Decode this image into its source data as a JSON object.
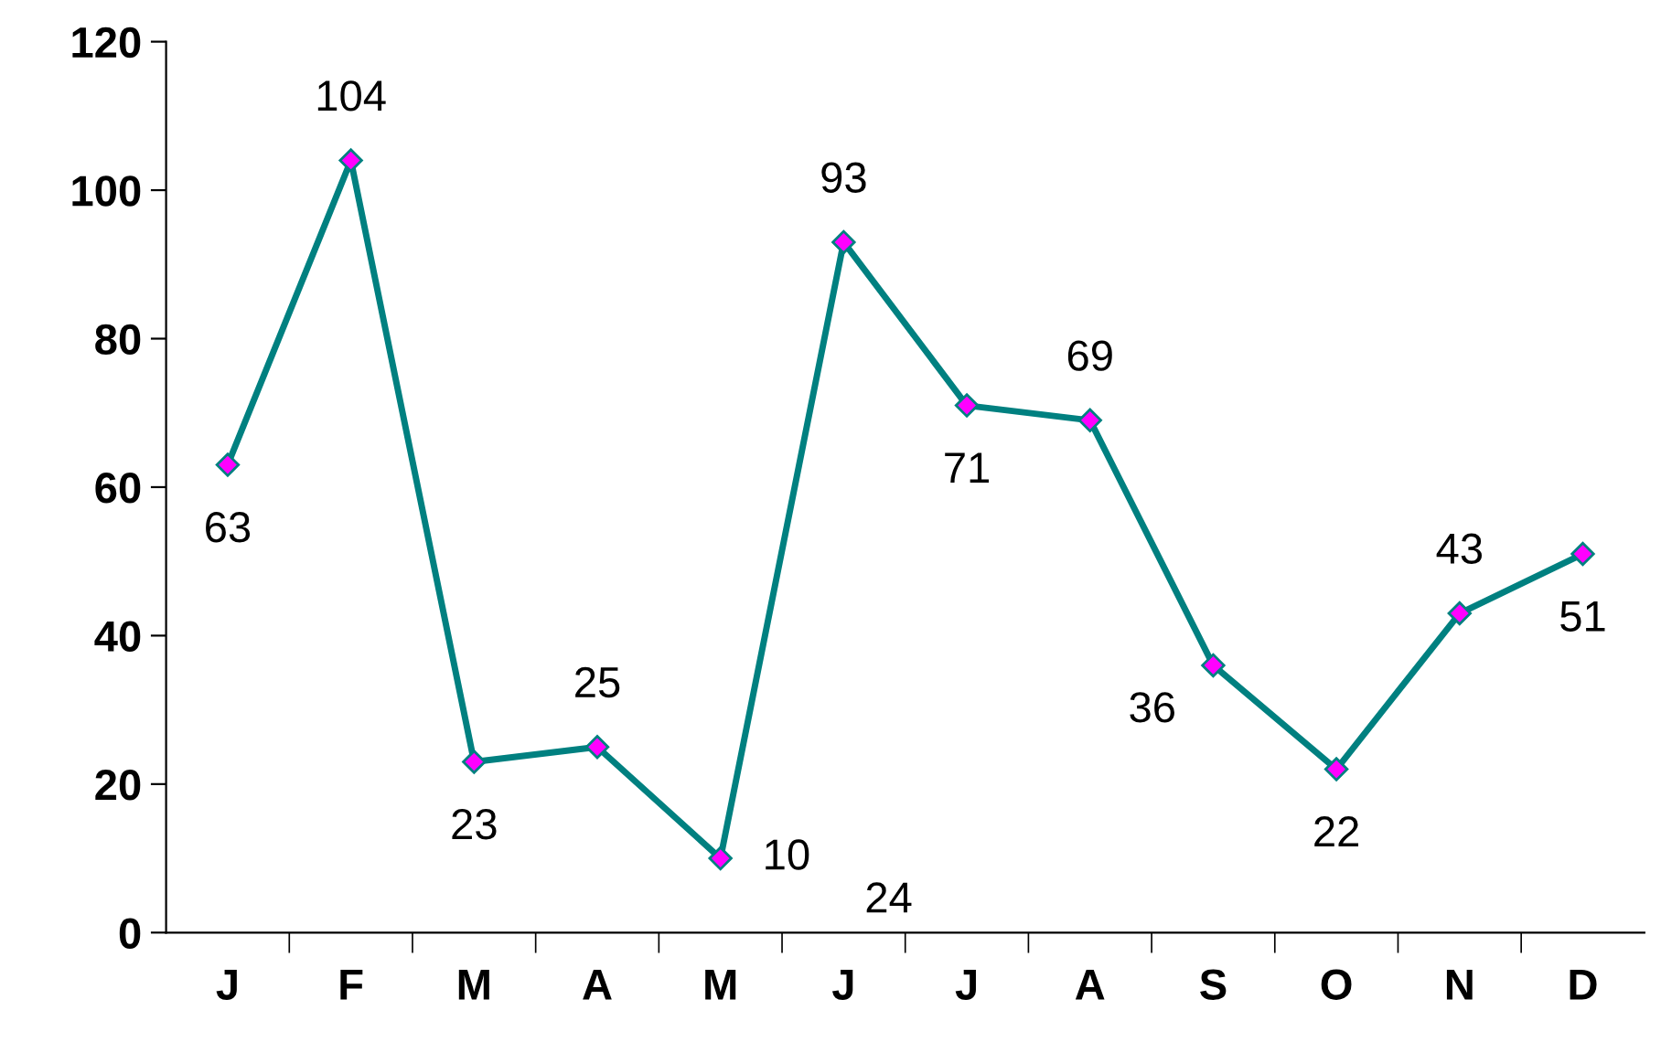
{
  "chart_data": {
    "type": "line",
    "categories": [
      "J",
      "F",
      "M",
      "A",
      "M",
      "J",
      "J",
      "A",
      "S",
      "O",
      "N",
      "D"
    ],
    "series": [
      {
        "color": "#008080",
        "values": [
          63,
          104,
          23,
          25,
          10,
          93,
          71,
          69,
          36,
          22,
          43,
          51
        ]
      }
    ],
    "marker": "diamond",
    "ylim": [
      0,
      120
    ],
    "yticks": [
      0,
      20,
      40,
      60,
      80,
      100,
      120
    ],
    "grid": false,
    "legend": false,
    "data_labels": true,
    "annotations": [
      "24"
    ]
  }
}
